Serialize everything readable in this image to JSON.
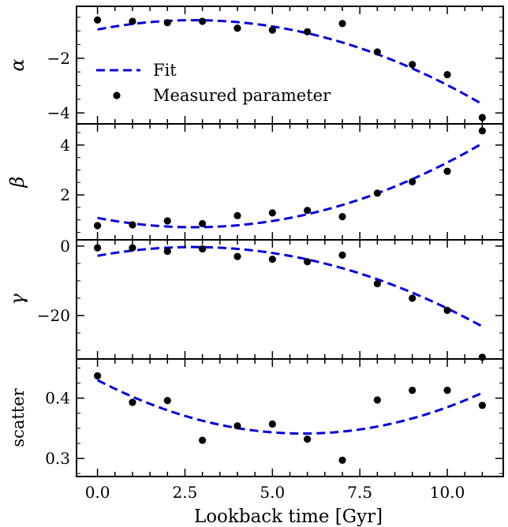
{
  "chart_data": {
    "type": "scatter",
    "xlabel": "Lookback time [Gyr]",
    "x_ticks": [
      "0.0",
      "2.5",
      "5.0",
      "7.5",
      "10.0"
    ],
    "xlim": [
      -0.6,
      11.6
    ],
    "x": [
      0,
      1,
      2,
      3,
      4,
      5,
      6,
      7,
      8,
      9,
      10,
      11
    ],
    "legend": {
      "placement": "lower-left of top panel",
      "entries": [
        {
          "label": "Fit",
          "style": "dashed-line"
        },
        {
          "label": "Measured parameter",
          "style": "marker"
        }
      ]
    },
    "colors": {
      "fit": "#0000dd",
      "points": "#000000"
    },
    "panels": [
      {
        "ylabel": "α",
        "ylim": [
          -4.4,
          -0.1
        ],
        "y_ticks": [
          "−2",
          "−4"
        ],
        "y_tick_values": [
          -2,
          -4
        ],
        "measured": [
          -0.6,
          -0.65,
          -0.7,
          -0.65,
          -0.9,
          -0.97,
          -1.03,
          -0.73,
          -1.77,
          -2.23,
          -2.6,
          -4.17
        ],
        "fit": {
          "a": -0.0452,
          "b": 0.2488,
          "c": -0.95
        }
      },
      {
        "ylabel": "β",
        "ylim": [
          0.2,
          4.85
        ],
        "y_ticks": [
          "4",
          "2"
        ],
        "y_tick_values": [
          4,
          2
        ],
        "measured": [
          0.77,
          0.8,
          0.96,
          0.85,
          1.17,
          1.28,
          1.38,
          1.13,
          2.07,
          2.53,
          2.95,
          4.57
        ],
        "fit": {
          "a": 0.0494,
          "b": -0.272,
          "c": 1.08
        }
      },
      {
        "ylabel": "γ",
        "ylim": [
          -32.5,
          1.8
        ],
        "y_ticks": [
          "0",
          "−20"
        ],
        "y_tick_values": [
          0,
          -20
        ],
        "measured": [
          -0.5,
          -0.5,
          -1.5,
          -0.8,
          -3.0,
          -3.8,
          -4.5,
          -2.6,
          -10.8,
          -15.0,
          -18.5,
          -32.0
        ],
        "fit": {
          "a": -0.3356,
          "b": 1.84,
          "c": -2.8
        }
      },
      {
        "ylabel": "scatter",
        "ylim": [
          0.27,
          0.465
        ],
        "y_ticks": [
          "0.4",
          "0.3"
        ],
        "y_tick_values": [
          0.4,
          0.3
        ],
        "measured": [
          0.437,
          0.393,
          0.396,
          0.33,
          0.354,
          0.357,
          0.332,
          0.297,
          0.397,
          0.413,
          0.413,
          0.388
        ],
        "fit": {
          "a": 0.00257,
          "b": -0.0302,
          "c": 0.43
        }
      }
    ]
  }
}
